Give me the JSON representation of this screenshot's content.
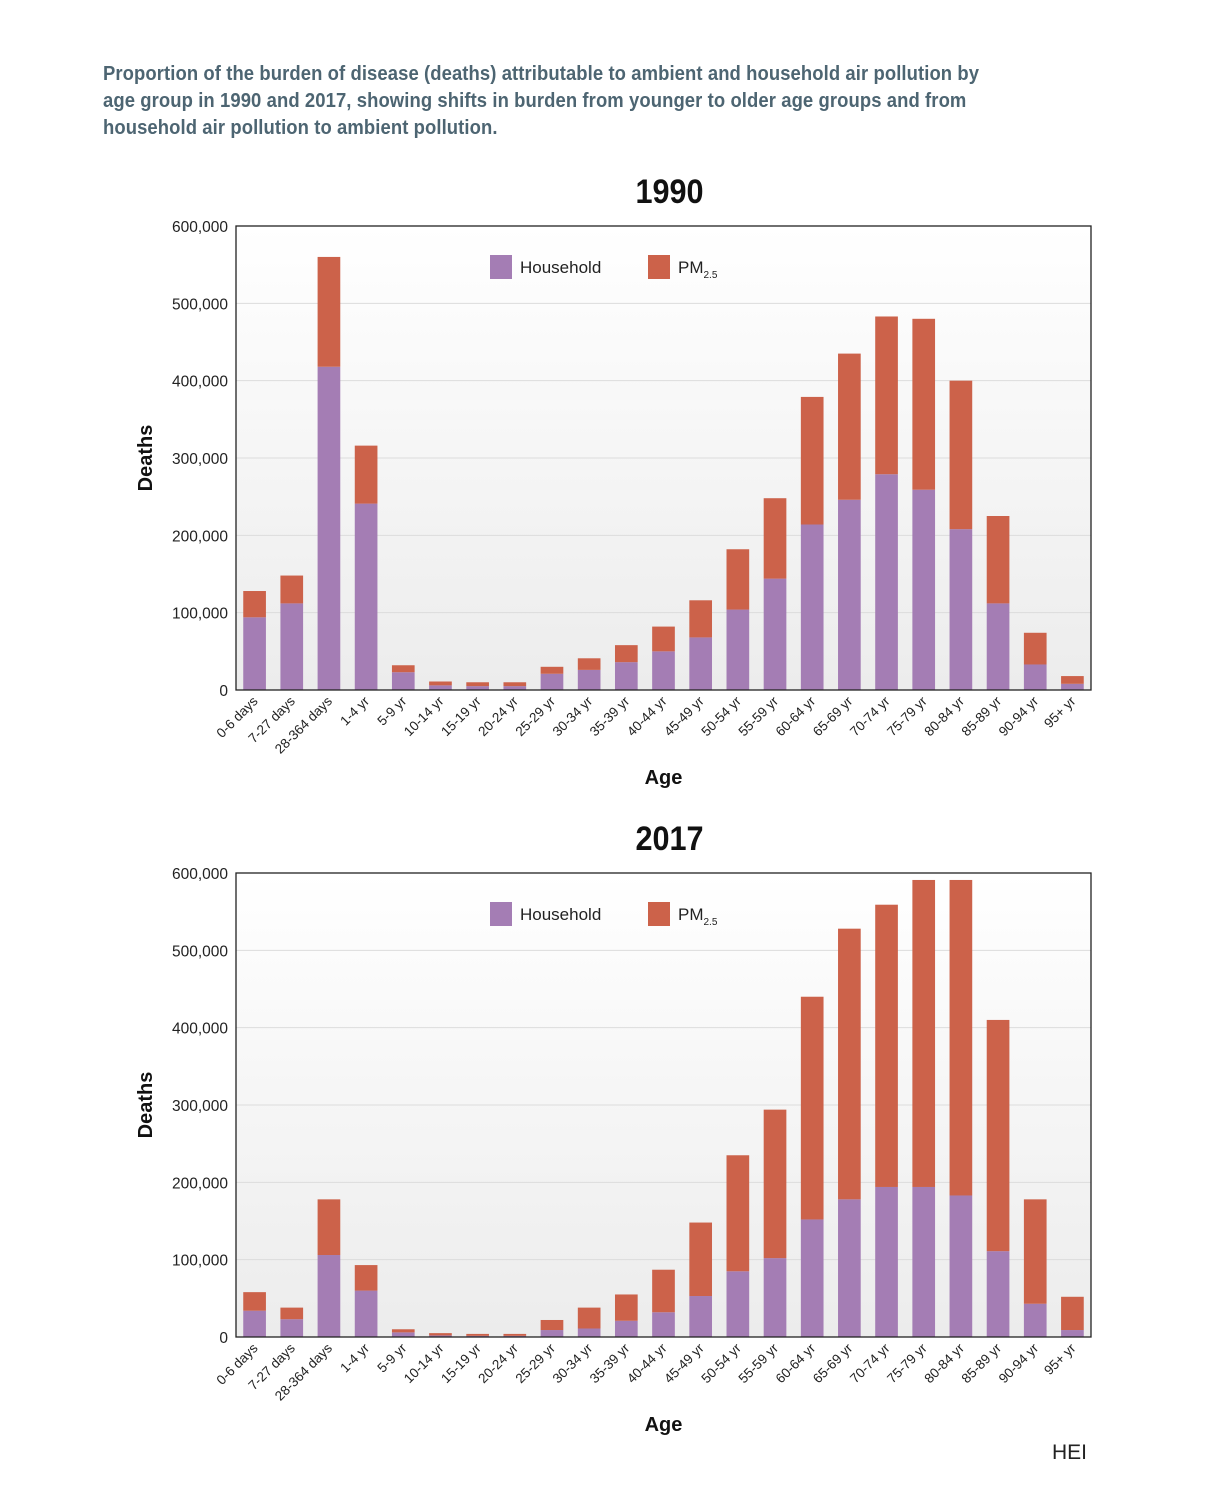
{
  "caption": "Proportion of the burden of disease (deaths) attributable to ambient and household air pollution by age group in 1990 and 2017, showing shifts in burden from younger to older age groups and from household air pollution to ambient pollution.",
  "footer": "HEI",
  "colors": {
    "household": "#a47db4",
    "pm25": "#cc624a",
    "plot_bg_top": "#ffffff",
    "plot_bg_bottom": "#ececec",
    "grid": "#dcdcdc"
  },
  "chart_data": [
    {
      "type": "bar",
      "stacked": true,
      "title": "1990",
      "xlabel": "Age",
      "ylabel": "Deaths",
      "ylim": [
        0,
        600000
      ],
      "yticks": [
        0,
        100000,
        200000,
        300000,
        400000,
        500000,
        600000
      ],
      "ytick_labels": [
        "0",
        "100,000",
        "200,000",
        "300,000",
        "400,000",
        "500,000",
        "600,000"
      ],
      "legend_placement": "top-center",
      "grid": true,
      "categories": [
        "0-6 days",
        "7-27 days",
        "28-364 days",
        "1-4  yr",
        "5-9 yr",
        "10-14 yr",
        "15-19 yr",
        "20-24 yr",
        "25-29  yr",
        "30-34 yr",
        "35-39 yr",
        "40-44 yr",
        "45-49 yr",
        "50-54 yr",
        "55-59 yr",
        "60-64 yr",
        "65-69 yr",
        "70-74 yr",
        "75-79 yr",
        "80-84 yr",
        "85-89 yr",
        "90-94 yr",
        "95+ yr"
      ],
      "series": [
        {
          "name": "Household",
          "label_main": "Household",
          "label_sub": "",
          "color": "#a47db4",
          "values": [
            94000,
            112000,
            418000,
            241000,
            23000,
            6000,
            5000,
            5000,
            21000,
            26000,
            36000,
            50000,
            68000,
            104000,
            144000,
            214000,
            246000,
            279000,
            259000,
            208000,
            112000,
            33000,
            8000
          ]
        },
        {
          "name": "PM2.5",
          "label_main": "PM",
          "label_sub": "2.5",
          "color": "#cc624a",
          "values": [
            34000,
            36000,
            142000,
            75000,
            9000,
            5000,
            5000,
            5000,
            9000,
            15000,
            22000,
            32000,
            48000,
            78000,
            104000,
            165000,
            189000,
            204000,
            221000,
            192000,
            113000,
            41000,
            10000
          ]
        }
      ]
    },
    {
      "type": "bar",
      "stacked": true,
      "title": "2017",
      "xlabel": "Age",
      "ylabel": "Deaths",
      "ylim": [
        0,
        600000
      ],
      "yticks": [
        0,
        100000,
        200000,
        300000,
        400000,
        500000,
        600000
      ],
      "ytick_labels": [
        "0",
        "100,000",
        "200,000",
        "300,000",
        "400,000",
        "500,000",
        "600,000"
      ],
      "legend_placement": "top-center",
      "grid": true,
      "categories": [
        "0-6 days",
        "7-27 days",
        "28-364 days",
        "1-4  yr",
        "5-9 yr",
        "10-14 yr",
        "15-19 yr",
        "20-24 yr",
        "25-29  yr",
        "30-34 yr",
        "35-39 yr",
        "40-44 yr",
        "45-49 yr",
        "50-54 yr",
        "55-59 yr",
        "60-64 yr",
        "65-69 yr",
        "70-74 yr",
        "75-79 yr",
        "80-84 yr",
        "85-89 yr",
        "90-94 yr",
        "95+ yr"
      ],
      "series": [
        {
          "name": "Household",
          "label_main": "Household",
          "label_sub": "",
          "color": "#a47db4",
          "values": [
            34000,
            23000,
            106000,
            60000,
            6000,
            2000,
            1500,
            1500,
            9000,
            11000,
            21000,
            32000,
            53000,
            85000,
            102000,
            152000,
            178000,
            194000,
            194000,
            183000,
            111000,
            43000,
            9000
          ]
        },
        {
          "name": "PM2.5",
          "label_main": "PM",
          "label_sub": "2.5",
          "color": "#cc624a",
          "values": [
            24000,
            15000,
            72000,
            33000,
            4000,
            3000,
            2500,
            2500,
            13000,
            27000,
            34000,
            55000,
            95000,
            150000,
            192000,
            288000,
            350000,
            365000,
            397000,
            408000,
            299000,
            135000,
            43000
          ]
        }
      ]
    }
  ]
}
